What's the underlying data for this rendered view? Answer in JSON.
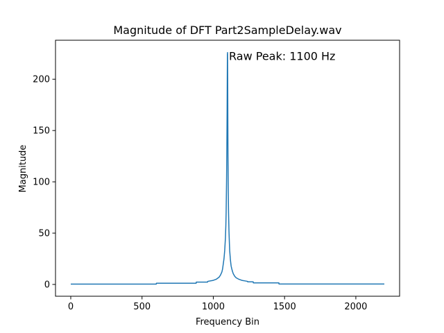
{
  "chart_data": {
    "type": "line",
    "title": "Magnitude of DFT Part2SampleDelay.wav",
    "xlabel": "Frequency Bin",
    "ylabel": "Magnitude",
    "xlim": [
      -107,
      2307
    ],
    "ylim": [
      -11.5,
      238
    ],
    "xticks": [
      0,
      500,
      1000,
      1500,
      2000
    ],
    "xtick_labels": [
      "0",
      "500",
      "1000",
      "1500",
      "2000"
    ],
    "yticks": [
      0,
      50,
      100,
      150,
      200
    ],
    "ytick_labels": [
      "0",
      "50",
      "100",
      "150",
      "200"
    ],
    "grid": false,
    "line_color": "#1f77b4",
    "annotation": {
      "text": "Raw Peak: 1100 Hz",
      "x": 1100,
      "y": 226
    },
    "series": [
      {
        "x": [
          0,
          600,
          601,
          880,
          881,
          960,
          961,
          1000,
          1020,
          1040,
          1050,
          1060,
          1065,
          1070,
          1075,
          1080,
          1085,
          1088,
          1090,
          1093,
          1095,
          1097,
          1098,
          1099,
          1100,
          1101,
          1102,
          1103,
          1105,
          1107,
          1110,
          1113,
          1115,
          1120,
          1125,
          1130,
          1135,
          1140,
          1150,
          1160,
          1180,
          1200,
          1220,
          1240,
          1241,
          1280,
          1281,
          1460,
          1461,
          2200
        ],
        "y": [
          0.3,
          0.3,
          1.2,
          1.2,
          2.3,
          2.3,
          3.0,
          4.0,
          5.0,
          7.0,
          9.0,
          12.0,
          15.0,
          20.0,
          25.0,
          33.0,
          45.0,
          57.0,
          70.0,
          100.0,
          130.0,
          170.0,
          200.0,
          224.0,
          226.0,
          200.0,
          160.0,
          125.0,
          90.0,
          70.0,
          52.0,
          40.0,
          33.0,
          24.0,
          18.0,
          15.0,
          12.5,
          10.5,
          8.0,
          6.5,
          5.0,
          4.0,
          3.5,
          3.0,
          2.5,
          2.5,
          1.5,
          1.5,
          0.4,
          0.4
        ]
      }
    ]
  }
}
